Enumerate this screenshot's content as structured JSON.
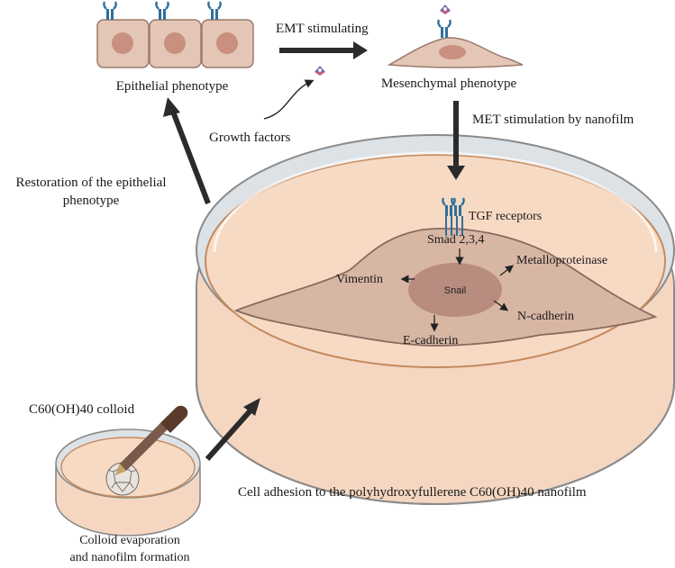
{
  "labels": {
    "epithelial": "Epithelial phenotype",
    "emt": "EMT stimulating",
    "mesenchymal": "Mesenchymal phenotype",
    "growth_factors": "Growth factors",
    "met": "MET stimulation by nanofilm",
    "restoration_line1": "Restoration of the epithelial",
    "restoration_line2": "phenotype",
    "tgf": "TGF receptors",
    "smad": "Smad 2,3,4",
    "vimentin": "Vimentin",
    "snail": "Snail",
    "metallo": "Metalloproteinase",
    "ncadherin": "N-cadherin",
    "ecadherin": "E-cadherin",
    "colloid": "C60(OH)40 colloid",
    "adhesion": "Cell adhesion to the polyhydroxyfullerene C60(OH)40 nanofilm",
    "evap_line1": "Colloid evaporation",
    "evap_line2": "and nanofilm formation"
  },
  "colors": {
    "cell_fill": "#e3c4b4",
    "nucleus": "#c98f80",
    "dish_media": "#f6d8c2",
    "dish_rim": "#d9dee3",
    "arrow": "#2b2b2b",
    "receptor_blue": "#2f6f9a",
    "ligand_purple": "#7a62a8",
    "dropper_brown": "#6b4433"
  }
}
